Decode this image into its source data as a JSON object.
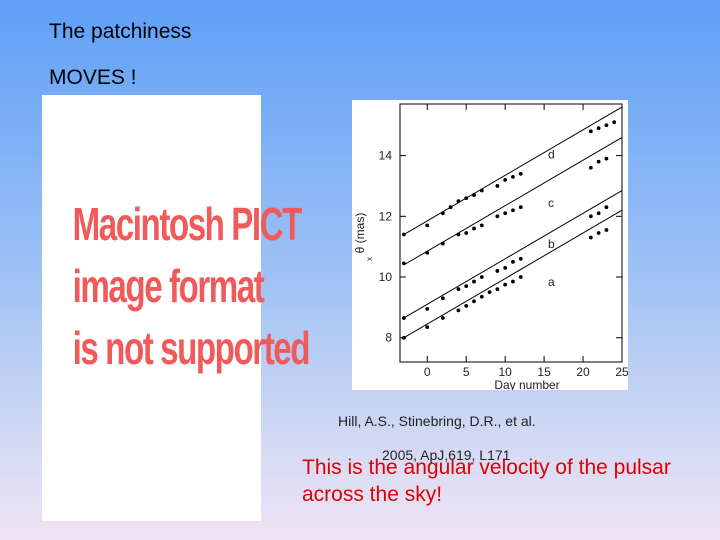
{
  "slide": {
    "title_line1": "The patchiness",
    "title_line2": "MOVES !"
  },
  "pict_placeholder": {
    "lines": [
      "Macintosh PICT",
      "image format",
      "is not supported"
    ],
    "color": "#f05a5a"
  },
  "citation": {
    "line1": "Hill, A.S., Stinebring, D.R., et al.",
    "line2": "2005, ApJ,619, L171"
  },
  "note": {
    "text": "This is the angular velocity of the pulsar across the sky!",
    "color": "#e00000"
  },
  "chart_data": {
    "type": "scatter",
    "title": "",
    "xlabel": "Day number",
    "ylabel": "θ (mas)",
    "ylabel_subscript": "x",
    "xlim": [
      -3.5,
      25
    ],
    "ylim": [
      7.2,
      15.7
    ],
    "xticks": [
      0,
      5,
      10,
      15,
      20,
      25
    ],
    "yticks": [
      8,
      10,
      12,
      14
    ],
    "grid": false,
    "series": [
      {
        "name": "d",
        "fit": {
          "x": [
            -3,
            25
          ],
          "y": [
            11.4,
            15.6
          ]
        },
        "label_pos": {
          "x": 15.5,
          "y": 13.9
        },
        "points": [
          [
            -3,
            11.4
          ],
          [
            0,
            11.7
          ],
          [
            2,
            12.1
          ],
          [
            3,
            12.3
          ],
          [
            4,
            12.5
          ],
          [
            5,
            12.6
          ],
          [
            6,
            12.7
          ],
          [
            7,
            12.85
          ],
          [
            9,
            13.0
          ],
          [
            10,
            13.2
          ],
          [
            11,
            13.3
          ],
          [
            12,
            13.4
          ],
          [
            21,
            14.8
          ],
          [
            22,
            14.9
          ],
          [
            23,
            15.0
          ],
          [
            24,
            15.1
          ]
        ]
      },
      {
        "name": "c",
        "fit": {
          "x": [
            -3,
            25
          ],
          "y": [
            10.4,
            14.6
          ]
        },
        "label_pos": {
          "x": 15.5,
          "y": 12.3
        },
        "points": [
          [
            -3,
            10.45
          ],
          [
            0,
            10.8
          ],
          [
            2,
            11.1
          ],
          [
            4,
            11.4
          ],
          [
            5,
            11.45
          ],
          [
            6,
            11.6
          ],
          [
            7,
            11.7
          ],
          [
            9,
            12.0
          ],
          [
            10,
            12.1
          ],
          [
            11,
            12.2
          ],
          [
            12,
            12.3
          ],
          [
            21,
            13.6
          ],
          [
            22,
            13.8
          ],
          [
            23,
            13.9
          ]
        ]
      },
      {
        "name": "b",
        "fit": {
          "x": [
            -3,
            25
          ],
          "y": [
            8.65,
            12.85
          ]
        },
        "label_pos": {
          "x": 15.5,
          "y": 10.95
        },
        "points": [
          [
            -3,
            8.65
          ],
          [
            0,
            8.95
          ],
          [
            2,
            9.3
          ],
          [
            4,
            9.6
          ],
          [
            5,
            9.7
          ],
          [
            6,
            9.85
          ],
          [
            7,
            10.0
          ],
          [
            9,
            10.2
          ],
          [
            10,
            10.3
          ],
          [
            11,
            10.5
          ],
          [
            12,
            10.6
          ],
          [
            21,
            12.0
          ],
          [
            22,
            12.1
          ],
          [
            23,
            12.3
          ]
        ]
      },
      {
        "name": "a",
        "fit": {
          "x": [
            -3,
            25
          ],
          "y": [
            8.0,
            12.2
          ]
        },
        "label_pos": {
          "x": 15.5,
          "y": 9.7
        },
        "points": [
          [
            -3,
            8.0
          ],
          [
            0,
            8.35
          ],
          [
            2,
            8.65
          ],
          [
            4,
            8.9
          ],
          [
            5,
            9.05
          ],
          [
            6,
            9.2
          ],
          [
            7,
            9.35
          ],
          [
            8,
            9.5
          ],
          [
            9,
            9.6
          ],
          [
            10,
            9.75
          ],
          [
            11,
            9.85
          ],
          [
            12,
            10.0
          ],
          [
            21,
            11.3
          ],
          [
            22,
            11.45
          ],
          [
            23,
            11.55
          ]
        ]
      }
    ]
  }
}
